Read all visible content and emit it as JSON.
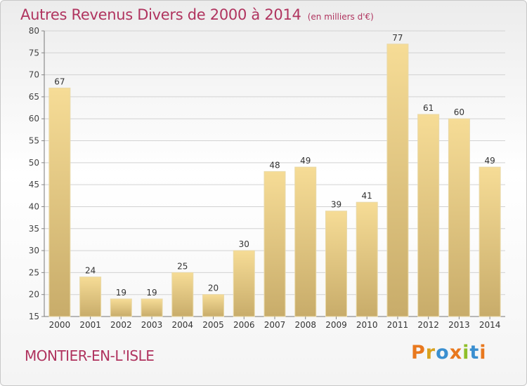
{
  "header": {
    "title": "Autres Revenus Divers de 2000 à 2014",
    "subtitle": "(en milliers d'€)"
  },
  "footer": {
    "commune": "MONTIER-EN-L'ISLE",
    "logo_text": "Proxiti"
  },
  "colors": {
    "title": "#b0345f",
    "bar_light": "#f6dc96",
    "bar_dark": "#c8ac6a",
    "logo_letters": [
      "#e8781e",
      "#d8a21e",
      "#3a8fd0",
      "#e8781e",
      "#8fbf2a",
      "#3a8fd0",
      "#e8781e"
    ]
  },
  "chart_data": {
    "type": "bar",
    "title": "Autres Revenus Divers de 2000 à 2014",
    "subtitle": "(en milliers d'€)",
    "categories": [
      "2000",
      "2001",
      "2002",
      "2003",
      "2004",
      "2005",
      "2006",
      "2007",
      "2008",
      "2009",
      "2010",
      "2011",
      "2012",
      "2013",
      "2014"
    ],
    "values": [
      67,
      24,
      19,
      19,
      25,
      20,
      30,
      48,
      49,
      39,
      41,
      77,
      61,
      60,
      49
    ],
    "ylim": [
      15,
      80
    ],
    "yticks": [
      15,
      20,
      25,
      30,
      35,
      40,
      45,
      50,
      55,
      60,
      65,
      70,
      75,
      80
    ],
    "grid": true,
    "legend": "none"
  }
}
